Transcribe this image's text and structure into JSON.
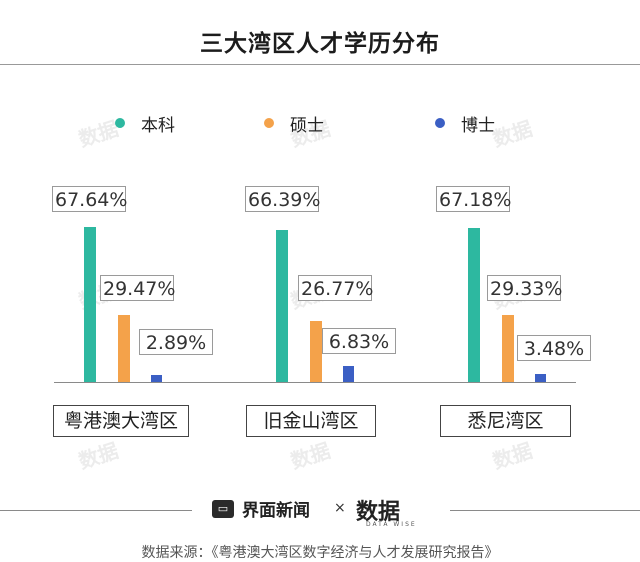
{
  "chart_data": {
    "type": "bar",
    "title": "三大湾区人才学历分布",
    "categories": [
      "粤港澳大湾区",
      "旧金山湾区",
      "悉尼湾区"
    ],
    "series": [
      {
        "name": "本科",
        "values": [
          67.64,
          66.39,
          67.18
        ],
        "color": "#2db8a0"
      },
      {
        "name": "硕士",
        "values": [
          29.47,
          26.77,
          29.33
        ],
        "color": "#f4a24a"
      },
      {
        "name": "博士",
        "values": [
          2.89,
          6.83,
          3.48
        ],
        "color": "#3b5fc4"
      }
    ],
    "value_labels": [
      [
        "67.64%",
        "29.47%",
        "2.89%"
      ],
      [
        "66.39%",
        "26.77%",
        "6.83%"
      ],
      [
        "67.18%",
        "29.33%",
        "3.48%"
      ]
    ],
    "legend_position": "top",
    "grid": false,
    "ylim": [
      0,
      70
    ]
  },
  "footer": {
    "brand1": "界面新闻",
    "times": "×",
    "brand2": "数据",
    "brand2_sub": "DATA WISE",
    "source": "数据来源：《粤港澳大湾区数字经济与人才发展研究报告》"
  },
  "watermark": "数据"
}
